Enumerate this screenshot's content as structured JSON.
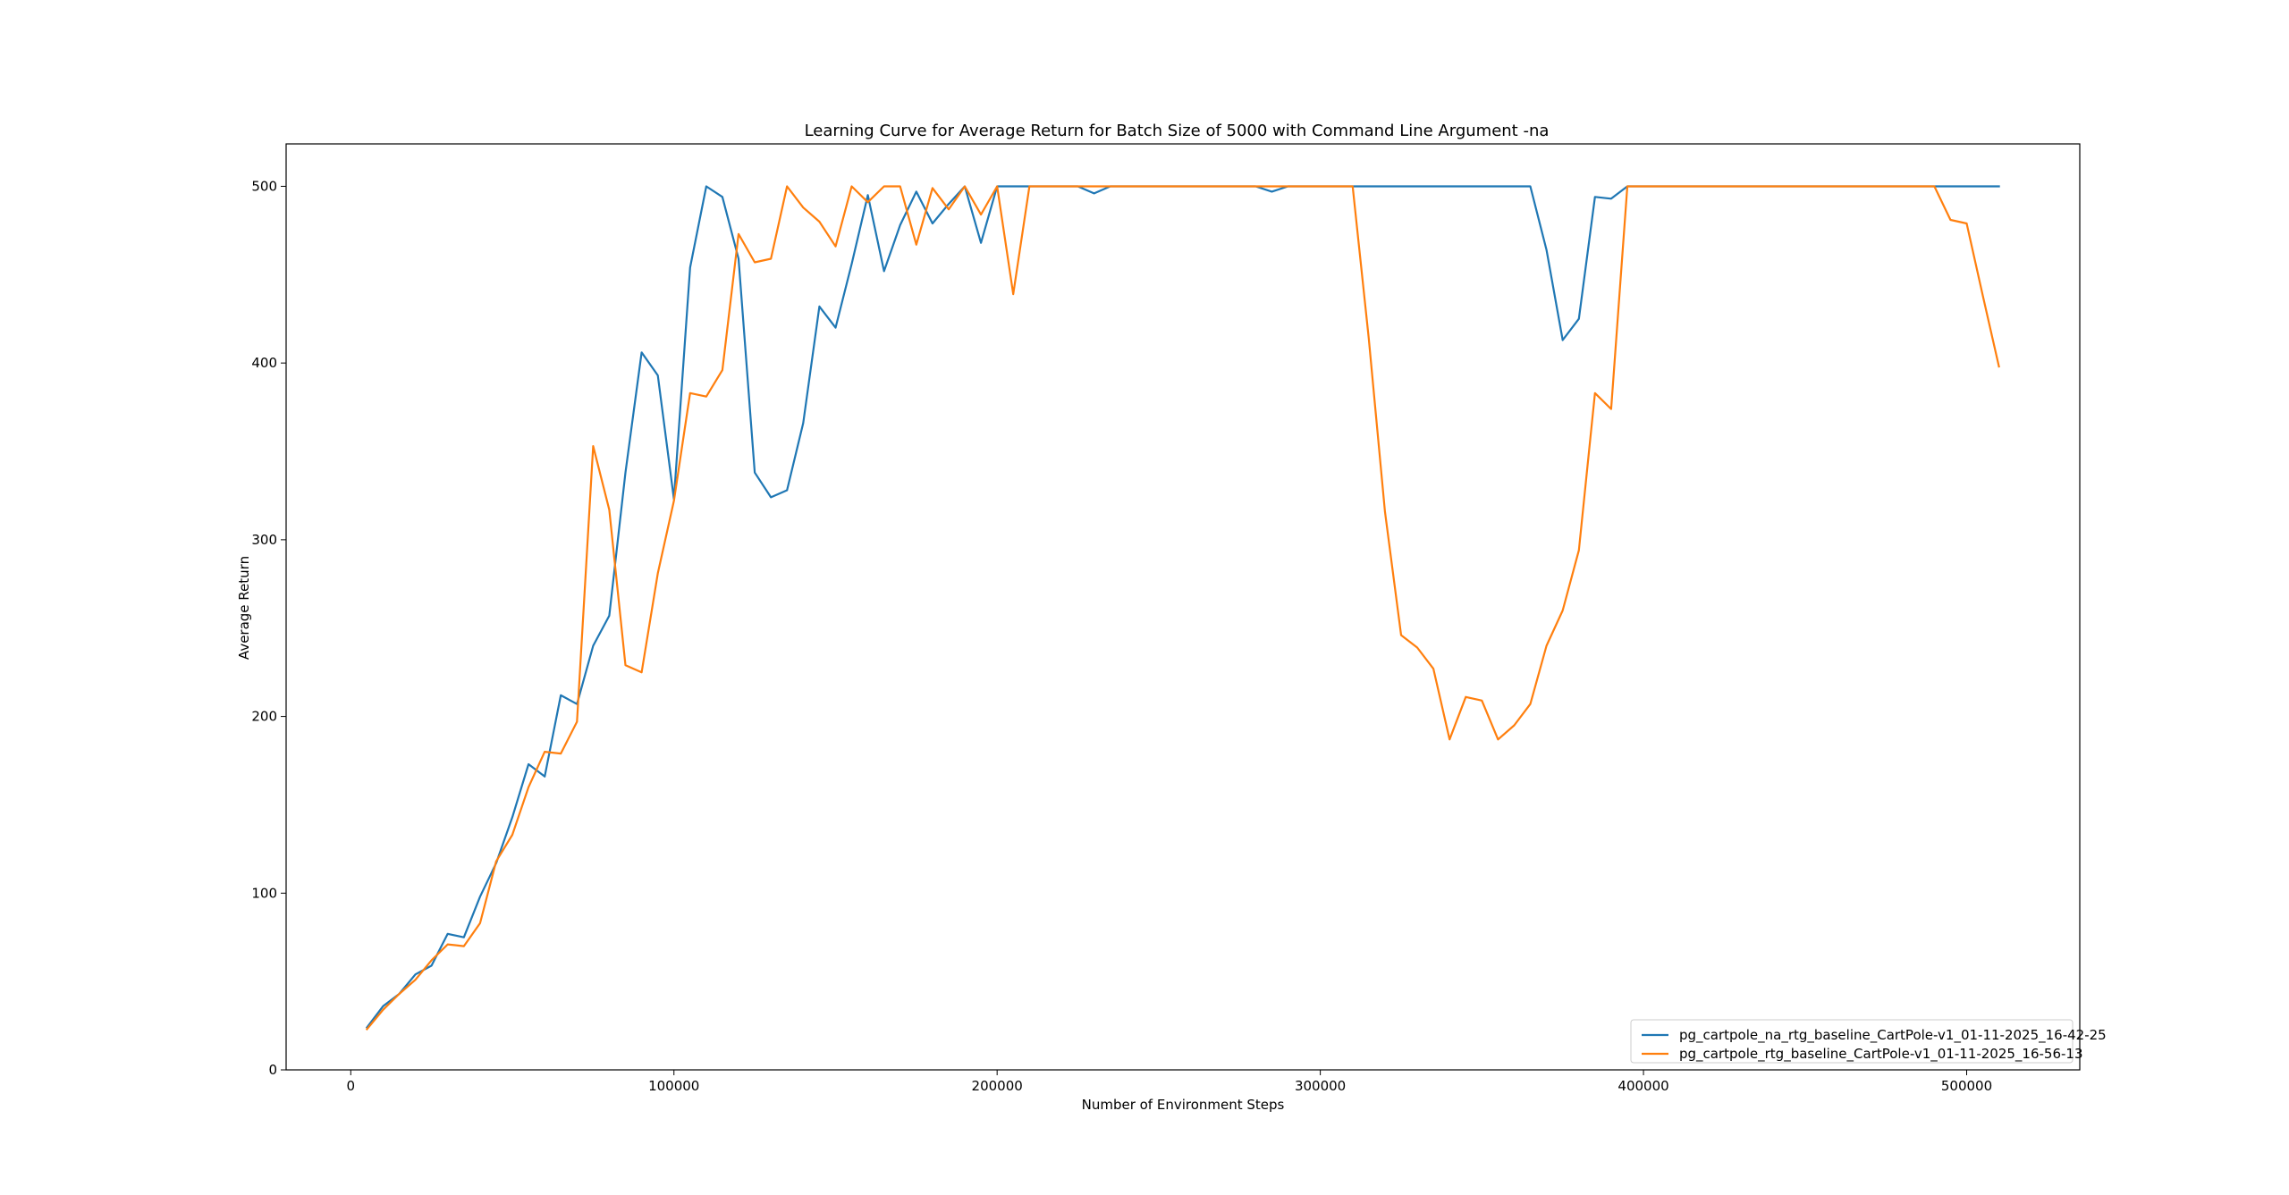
{
  "chart_data": {
    "type": "line",
    "title": "Learning Curve for Average Return for Batch Size of 5000 with Command Line Argument -na",
    "xlabel": "Number of Environment Steps",
    "ylabel": "Average Return",
    "xlim": [
      -20000,
      535000
    ],
    "ylim": [
      0,
      524
    ],
    "xticks": [
      0,
      100000,
      200000,
      300000,
      400000,
      500000
    ],
    "xtick_labels": [
      "0",
      "100000",
      "200000",
      "300000",
      "400000",
      "500000"
    ],
    "yticks": [
      0,
      100,
      200,
      300,
      400,
      500
    ],
    "ytick_labels": [
      "0",
      "100",
      "200",
      "300",
      "400",
      "500"
    ],
    "grid": false,
    "legend_position": "lower right",
    "series": [
      {
        "name": "pg_cartpole_na_rtg_baseline_CartPole-v1_01-11-2025_16-42-25",
        "color": "#1f77b4",
        "x": [
          5000,
          10000,
          15000,
          20000,
          25000,
          30000,
          35000,
          40000,
          45000,
          50000,
          55000,
          60000,
          65000,
          70000,
          75000,
          80000,
          85000,
          90000,
          95000,
          100000,
          105000,
          110000,
          115000,
          120000,
          125000,
          130000,
          135000,
          140000,
          145000,
          150000,
          155000,
          160000,
          165000,
          170000,
          175000,
          180000,
          185000,
          190000,
          195000,
          200000,
          205000,
          210000,
          215000,
          220000,
          225000,
          230000,
          235000,
          240000,
          245000,
          250000,
          255000,
          260000,
          265000,
          270000,
          275000,
          280000,
          285000,
          290000,
          295000,
          300000,
          305000,
          310000,
          315000,
          320000,
          325000,
          330000,
          335000,
          340000,
          345000,
          350000,
          355000,
          360000,
          365000,
          370000,
          375000,
          380000,
          385000,
          390000,
          395000,
          400000,
          405000,
          410000,
          415000,
          420000,
          425000,
          430000,
          435000,
          440000,
          445000,
          450000,
          455000,
          460000,
          465000,
          470000,
          475000,
          480000,
          485000,
          490000,
          495000,
          500000,
          505000,
          510000
        ],
        "y": [
          24,
          36,
          43,
          54,
          59,
          77,
          75,
          98,
          117,
          143,
          173,
          166,
          212,
          207,
          240,
          257,
          338,
          406,
          393,
          323,
          454,
          500,
          494,
          459,
          338,
          324,
          328,
          366,
          432,
          420,
          456,
          495,
          452,
          478,
          497,
          479,
          490,
          500,
          468,
          500,
          500,
          500,
          500,
          500,
          500,
          496,
          500,
          500,
          500,
          500,
          500,
          500,
          500,
          500,
          500,
          500,
          497,
          500,
          500,
          500,
          500,
          500,
          500,
          500,
          500,
          500,
          500,
          500,
          500,
          500,
          500,
          500,
          500,
          464,
          413,
          425,
          494,
          493,
          500,
          500,
          500,
          500,
          500,
          500,
          500,
          500,
          500,
          500,
          500,
          500,
          500,
          500,
          500,
          500,
          500,
          500,
          500,
          500,
          500,
          500,
          500,
          500
        ]
      },
      {
        "name": "pg_cartpole_rtg_baseline_CartPole-v1_01-11-2025_16-56-13",
        "color": "#ff7f0e",
        "x": [
          5000,
          10000,
          15000,
          20000,
          25000,
          30000,
          35000,
          40000,
          45000,
          50000,
          55000,
          60000,
          65000,
          70000,
          75000,
          80000,
          85000,
          90000,
          95000,
          100000,
          105000,
          110000,
          115000,
          120000,
          125000,
          130000,
          135000,
          140000,
          145000,
          150000,
          155000,
          160000,
          165000,
          170000,
          175000,
          180000,
          185000,
          190000,
          195000,
          200000,
          205000,
          210000,
          215000,
          220000,
          225000,
          230000,
          235000,
          240000,
          245000,
          250000,
          255000,
          260000,
          265000,
          270000,
          275000,
          280000,
          285000,
          290000,
          295000,
          300000,
          305000,
          310000,
          315000,
          320000,
          325000,
          330000,
          335000,
          340000,
          345000,
          350000,
          355000,
          360000,
          365000,
          370000,
          375000,
          380000,
          385000,
          390000,
          395000,
          400000,
          405000,
          410000,
          415000,
          420000,
          425000,
          430000,
          435000,
          440000,
          445000,
          450000,
          455000,
          460000,
          465000,
          470000,
          475000,
          480000,
          485000,
          490000,
          495000,
          500000,
          505000,
          510000
        ],
        "y": [
          23,
          34,
          43,
          51,
          62,
          71,
          70,
          83,
          118,
          133,
          160,
          180,
          179,
          197,
          353,
          317,
          229,
          225,
          281,
          322,
          383,
          381,
          396,
          473,
          457,
          459,
          500,
          488,
          480,
          466,
          500,
          491,
          500,
          500,
          467,
          499,
          487,
          500,
          484,
          500,
          439,
          500,
          500,
          500,
          500,
          500,
          500,
          500,
          500,
          500,
          500,
          500,
          500,
          500,
          500,
          500,
          500,
          500,
          500,
          500,
          500,
          500,
          414,
          316,
          246,
          239,
          227,
          187,
          211,
          209,
          187,
          195,
          207,
          240,
          260,
          294,
          383,
          374,
          500,
          500,
          500,
          500,
          500,
          500,
          500,
          500,
          500,
          500,
          500,
          500,
          500,
          500,
          500,
          500,
          500,
          500,
          500,
          500,
          481,
          479,
          438,
          398
        ]
      }
    ]
  }
}
